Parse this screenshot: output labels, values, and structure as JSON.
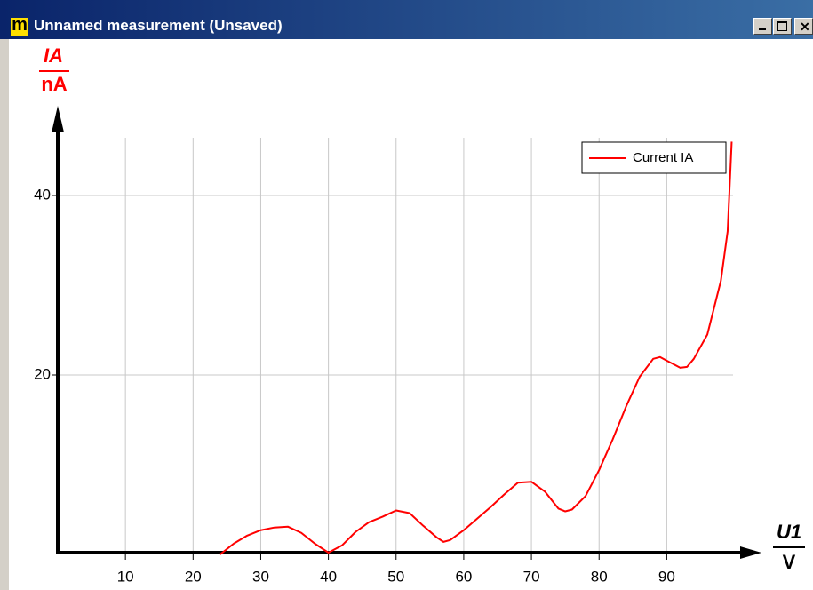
{
  "window": {
    "icon": "m",
    "title": "Unnamed measurement (Unsaved)"
  },
  "chart_data": {
    "type": "line",
    "x_label": {
      "quantity": "U1",
      "unit": "V"
    },
    "y_label": {
      "quantity": "IA",
      "unit": "nA"
    },
    "xlim": [
      0,
      104
    ],
    "ylim": [
      0,
      50
    ],
    "xticks": [
      10,
      20,
      30,
      40,
      50,
      60,
      70,
      80,
      90
    ],
    "yticks": [
      20,
      40
    ],
    "grid": true,
    "legend": "upper right",
    "x": [
      24,
      26,
      28,
      30,
      32,
      34,
      36,
      38,
      40,
      42,
      44,
      46,
      48,
      50,
      52,
      54,
      56,
      57,
      58,
      60,
      62,
      64,
      66,
      68,
      70,
      72,
      74,
      75,
      76,
      78,
      80,
      82,
      84,
      86,
      88,
      89,
      90,
      92,
      93,
      94,
      96,
      98,
      99,
      99.6
    ],
    "series": [
      {
        "name": "Current IA",
        "color": "#ff0000",
        "values": [
          0,
          1.2,
          2.1,
          2.7,
          3.0,
          3.1,
          2.4,
          1.2,
          0.2,
          1.0,
          2.5,
          3.6,
          4.2,
          4.9,
          4.6,
          3.2,
          1.9,
          1.4,
          1.6,
          2.7,
          4.0,
          5.3,
          6.7,
          8.0,
          8.1,
          7.0,
          5.1,
          4.8,
          5.0,
          6.5,
          9.4,
          12.8,
          16.5,
          19.8,
          21.8,
          22.0,
          21.6,
          20.8,
          20.9,
          21.8,
          24.5,
          30.5,
          36,
          46
        ]
      }
    ]
  }
}
